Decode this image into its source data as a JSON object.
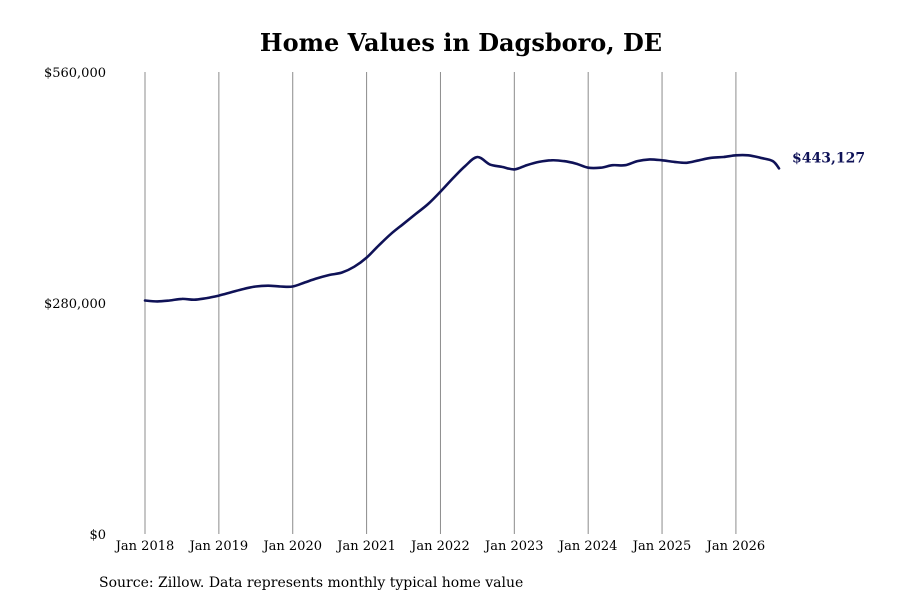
{
  "chart_data": {
    "type": "line",
    "title": "Home Values in Dagsboro, DE",
    "xlabel": "",
    "ylabel": "",
    "ylim": [
      0,
      560000
    ],
    "xlim": [
      "2018-01",
      "2026-08"
    ],
    "y_ticks": [
      {
        "value": 0,
        "label": "$0"
      },
      {
        "value": 280000,
        "label": "$280,000"
      },
      {
        "value": 560000,
        "label": "$560,000"
      }
    ],
    "x_ticks": [
      {
        "value": "2018-01",
        "label": "Jan 2018"
      },
      {
        "value": "2019-01",
        "label": "Jan 2019"
      },
      {
        "value": "2020-01",
        "label": "Jan 2020"
      },
      {
        "value": "2021-01",
        "label": "Jan 2021"
      },
      {
        "value": "2022-01",
        "label": "Jan 2022"
      },
      {
        "value": "2023-01",
        "label": "Jan 2023"
      },
      {
        "value": "2024-01",
        "label": "Jan 2024"
      },
      {
        "value": "2025-01",
        "label": "Jan 2025"
      },
      {
        "value": "2026-01",
        "label": "Jan 2026"
      }
    ],
    "grid": {
      "vertical": true,
      "horizontal": false
    },
    "line_color": "#0f1257",
    "series": [
      {
        "x": [
          "2018-01",
          "2018-03",
          "2018-05",
          "2018-07",
          "2018-09",
          "2018-11",
          "2019-01",
          "2019-03",
          "2019-05",
          "2019-07",
          "2019-09",
          "2019-11",
          "2020-01",
          "2020-03",
          "2020-05",
          "2020-07",
          "2020-09",
          "2020-11",
          "2021-01",
          "2021-03",
          "2021-05",
          "2021-07",
          "2021-09",
          "2021-11",
          "2022-01",
          "2022-03",
          "2022-05",
          "2022-07",
          "2022-09",
          "2022-11",
          "2023-01",
          "2023-03",
          "2023-05",
          "2023-07",
          "2023-09",
          "2023-11",
          "2024-01",
          "2024-03",
          "2024-05",
          "2024-07",
          "2024-09",
          "2024-11",
          "2025-01",
          "2025-03",
          "2025-05",
          "2025-07",
          "2025-09",
          "2025-11",
          "2026-01",
          "2026-03",
          "2026-05",
          "2026-07",
          "2026-08"
        ],
        "y": [
          283000,
          282000,
          283000,
          285000,
          284000,
          286000,
          289000,
          293000,
          297000,
          300000,
          301000,
          300000,
          300000,
          305000,
          310000,
          314000,
          317000,
          324000,
          335000,
          350000,
          364000,
          376000,
          388000,
          400000,
          415000,
          431000,
          446000,
          457000,
          448000,
          445000,
          442000,
          447000,
          451000,
          453000,
          452000,
          449000,
          444000,
          444000,
          447000,
          447000,
          452000,
          454000,
          453000,
          451000,
          450000,
          453000,
          456000,
          457000,
          459000,
          459000,
          456000,
          452000,
          443127
        ]
      }
    ],
    "end_label": "$443,127"
  },
  "footer": {
    "source": "Source: Zillow. Data represents monthly typical home value"
  }
}
